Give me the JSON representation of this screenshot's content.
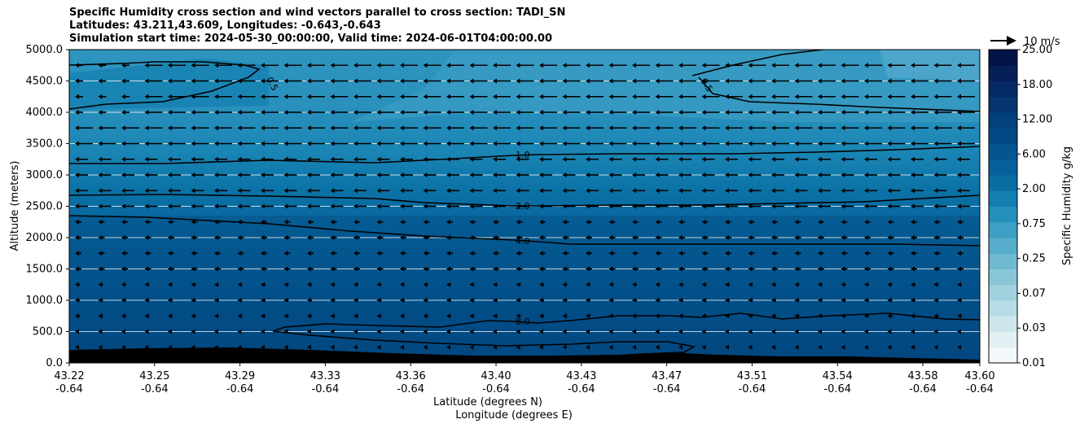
{
  "chart_data": {
    "type": "contour",
    "title": "Specific Humidity cross section and wind vectors parallel to cross section: TADI_SN",
    "subtitle": "Latitudes: 43.211,43.609, Longitudes: -0.643,-0.643",
    "time_line": "Simulation start time: 2024-05-30_00:00:00, Valid time: 2024-06-01T04:00:00.00",
    "ylabel": "Altitude (meters)",
    "xlabel_line1": "Latitude (degrees N)",
    "xlabel_line2": "Longitude (degrees E)",
    "ylim": [
      0,
      5000
    ],
    "y_ticks": [
      "0.0",
      "500.0",
      "1000.0",
      "1500.0",
      "2000.0",
      "2500.0",
      "3000.0",
      "3500.0",
      "4000.0",
      "4500.0",
      "5000.0"
    ],
    "x_ticks_lat": [
      "43.22",
      "43.25",
      "43.29",
      "43.33",
      "43.36",
      "43.40",
      "43.43",
      "43.47",
      "43.51",
      "43.54",
      "43.58",
      "43.60"
    ],
    "x_ticks_lon": [
      "-0.64",
      "-0.64",
      "-0.64",
      "-0.64",
      "-0.64",
      "-0.64",
      "-0.64",
      "-0.64",
      "-0.64",
      "-0.64",
      "-0.64",
      "-0.64"
    ],
    "grid": "horizontal",
    "colorbar": {
      "label": "Specific Humidity g/kg",
      "tick_labels": [
        "0.01",
        "0.03",
        "0.07",
        "0.25",
        "0.75",
        "2.00",
        "6.00",
        "12.00",
        "18.00",
        "25.00"
      ],
      "colors": [
        "#f3f9fb",
        "#e2f0f3",
        "#cde6ec",
        "#b7dce5",
        "#a0d1de",
        "#88c6d8",
        "#6fb9d1",
        "#55accb",
        "#3c9fc3",
        "#248fba",
        "#137fb0",
        "#0b6ea2",
        "#06609a",
        "#045590",
        "#024a86",
        "#03407c",
        "#053570",
        "#062a63",
        "#061f56",
        "#041446"
      ]
    },
    "contour_labels": [
      "0.5",
      "0.5",
      "1.0",
      "2.0",
      "4.0",
      "8.0"
    ],
    "quiver_key": "10 m/s",
    "colors": {
      "terrain": "#000000",
      "contour": "#000000",
      "arrow": "#000000"
    }
  }
}
